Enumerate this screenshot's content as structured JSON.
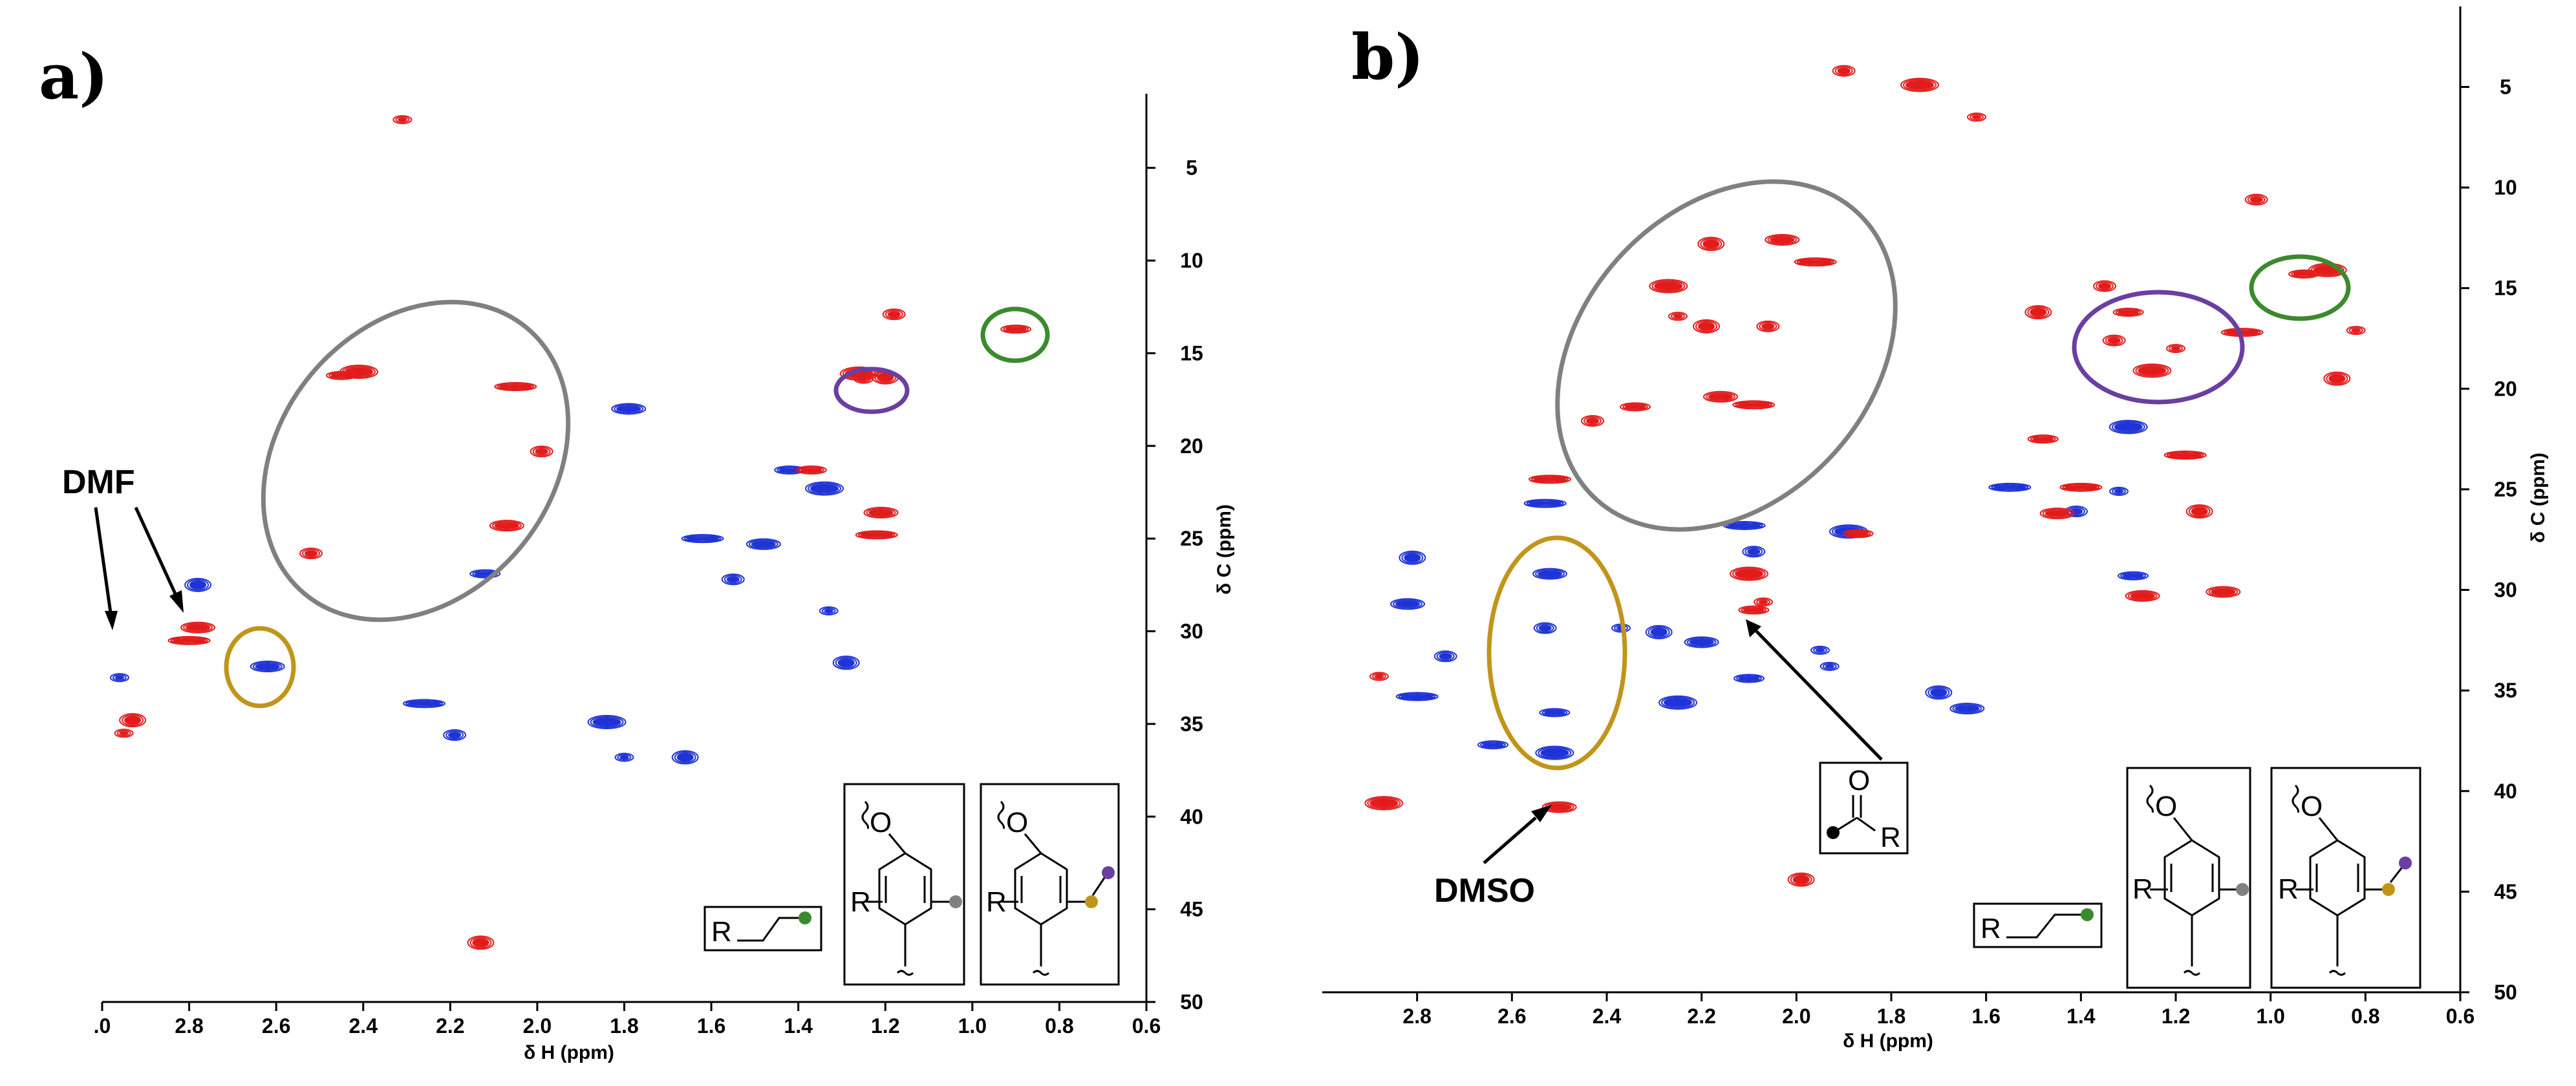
{
  "figure_colors": {
    "positive": "#e21b1b",
    "negative": "#1f33d6",
    "gray": "#808080",
    "gold": "#c0951a",
    "purple": "#6a3fa0",
    "green": "#3c8a2e"
  },
  "panels": [
    {
      "label": "a)",
      "xlabel": "δ H (ppm)",
      "ylabel": "δ C (ppm)",
      "xticks": [
        ".0",
        "2.8",
        "2.6",
        "2.4",
        "2.2",
        "2.0",
        "1.8",
        "1.6",
        "1.4",
        "1.2",
        "1.0",
        "0.8",
        "0.6"
      ],
      "yticks": [
        "5",
        "10",
        "15",
        "20",
        "25",
        "30",
        "35",
        "40",
        "45",
        "50"
      ],
      "annotation": "DMF",
      "structure_labels": [
        "R",
        "O",
        "R",
        "O",
        "R"
      ]
    },
    {
      "label": "b)",
      "xlabel": "δ H (ppm)",
      "ylabel": "δ C (ppm)",
      "xticks": [
        "2.8",
        "2.6",
        "2.4",
        "2.2",
        "2.0",
        "1.8",
        "1.6",
        "1.4",
        "1.2",
        "1.0",
        "0.8",
        "0.6"
      ],
      "yticks": [
        "5",
        "10",
        "15",
        "20",
        "25",
        "30",
        "35",
        "40",
        "45",
        "50"
      ],
      "annotation": "DMSO",
      "structure_labels": [
        "O",
        "R",
        "R",
        "O",
        "R",
        "O",
        "R"
      ]
    }
  ],
  "chart_data": [
    {
      "type": "scatter",
      "title": "a)",
      "xlabel": "δ H (ppm)",
      "ylabel": "δ C (ppm)",
      "xlim": [
        3.0,
        0.6
      ],
      "ylim": [
        50,
        1
      ],
      "series": [
        {
          "name": "positive (red)",
          "points": [
            [
              2.95,
              35.5
            ],
            [
              2.93,
              34.8
            ],
            [
              2.78,
              29.8
            ],
            [
              2.8,
              30.5
            ],
            [
              2.52,
              25.8
            ],
            [
              2.45,
              16.2
            ],
            [
              2.41,
              16.0
            ],
            [
              2.31,
              2.4
            ],
            [
              2.13,
              46.8
            ],
            [
              2.07,
              24.3
            ],
            [
              2.05,
              16.8
            ],
            [
              1.99,
              20.3
            ],
            [
              1.37,
              21.3
            ],
            [
              1.26,
              16.1
            ],
            [
              1.25,
              16.4
            ],
            [
              1.2,
              16.3
            ],
            [
              1.21,
              23.6
            ],
            [
              1.22,
              24.8
            ],
            [
              1.18,
              12.9
            ],
            [
              0.9,
              13.7
            ]
          ]
        },
        {
          "name": "negative (blue)",
          "points": [
            [
              2.96,
              32.5
            ],
            [
              2.78,
              27.5
            ],
            [
              2.62,
              31.9
            ],
            [
              2.26,
              33.9
            ],
            [
              2.19,
              35.6
            ],
            [
              2.12,
              26.9
            ],
            [
              1.84,
              34.9
            ],
            [
              1.8,
              36.8
            ],
            [
              1.66,
              36.8
            ],
            [
              1.79,
              18.0
            ],
            [
              1.62,
              25.0
            ],
            [
              1.55,
              27.2
            ],
            [
              1.42,
              21.3
            ],
            [
              1.34,
              22.3
            ],
            [
              1.33,
              28.9
            ],
            [
              1.29,
              31.7
            ],
            [
              1.48,
              25.3
            ]
          ]
        }
      ],
      "regions": [
        {
          "color": "gray",
          "x": 2.28,
          "y": 20.4
        },
        {
          "color": "gold",
          "x": 2.62,
          "y": 31.8
        },
        {
          "color": "purple",
          "x": 1.22,
          "y": 16.3
        },
        {
          "color": "green",
          "x": 0.9,
          "y": 13.7
        }
      ],
      "annotations": [
        {
          "text": "DMF",
          "targets": [
            [
              2.97,
              33.5
            ],
            [
              2.79,
              29.5
            ]
          ]
        }
      ]
    },
    {
      "type": "scatter",
      "title": "b)",
      "xlabel": "δ H (ppm)",
      "ylabel": "δ C (ppm)",
      "xlim": [
        3.0,
        0.6
      ],
      "ylim": [
        50,
        1
      ],
      "series": [
        {
          "name": "positive (red)",
          "points": [
            [
              2.5,
              40.8
            ],
            [
              2.52,
              24.5
            ],
            [
              2.43,
              21.6
            ],
            [
              2.34,
              20.9
            ],
            [
              2.27,
              14.9
            ],
            [
              2.25,
              16.4
            ],
            [
              2.19,
              16.9
            ],
            [
              2.16,
              20.4
            ],
            [
              2.09,
              20.8
            ],
            [
              2.06,
              16.9
            ],
            [
              2.09,
              31.0
            ],
            [
              2.1,
              29.2
            ],
            [
              2.07,
              30.6
            ],
            [
              2.18,
              12.8
            ],
            [
              2.03,
              12.6
            ],
            [
              1.96,
              13.7
            ],
            [
              1.9,
              4.2
            ],
            [
              1.87,
              27.2
            ],
            [
              1.74,
              4.9
            ],
            [
              1.62,
              6.5
            ],
            [
              1.49,
              16.2
            ],
            [
              1.45,
              26.2
            ],
            [
              1.4,
              24.9
            ],
            [
              1.33,
              17.6
            ],
            [
              1.3,
              16.2
            ],
            [
              1.25,
              19.1
            ],
            [
              1.2,
              18.0
            ],
            [
              1.15,
              26.1
            ],
            [
              1.1,
              30.1
            ],
            [
              1.06,
              17.2
            ],
            [
              1.03,
              10.6
            ],
            [
              0.93,
              14.3
            ],
            [
              0.88,
              14.1
            ],
            [
              0.82,
              17.1
            ],
            [
              0.86,
              19.5
            ],
            [
              1.27,
              30.3
            ],
            [
              1.18,
              23.3
            ],
            [
              1.35,
              14.9
            ],
            [
              1.48,
              22.5
            ],
            [
              2.87,
              40.6
            ],
            [
              2.88,
              34.3
            ],
            [
              1.99,
              44.4
            ]
          ]
        },
        {
          "name": "negative (blue)",
          "points": [
            [
              2.52,
              29.2
            ],
            [
              2.53,
              25.7
            ],
            [
              2.53,
              31.9
            ],
            [
              2.51,
              36.1
            ],
            [
              2.51,
              38.1
            ],
            [
              2.37,
              31.9
            ],
            [
              2.29,
              32.1
            ],
            [
              2.2,
              32.6
            ],
            [
              2.11,
              26.8
            ],
            [
              2.09,
              28.1
            ],
            [
              2.1,
              34.4
            ],
            [
              1.89,
              27.1
            ],
            [
              1.93,
              33.8
            ],
            [
              1.7,
              35.1
            ],
            [
              1.64,
              35.9
            ],
            [
              1.55,
              24.9
            ],
            [
              1.41,
              26.1
            ],
            [
              1.29,
              29.3
            ],
            [
              1.3,
              21.9
            ],
            [
              1.32,
              25.1
            ],
            [
              2.81,
              28.4
            ],
            [
              2.82,
              30.7
            ],
            [
              2.8,
              35.3
            ],
            [
              2.74,
              33.3
            ],
            [
              2.64,
              37.7
            ],
            [
              2.25,
              35.6
            ],
            [
              1.95,
              33.0
            ]
          ]
        }
      ],
      "regions": [
        {
          "color": "gray",
          "x": 2.1,
          "y": 18.0
        },
        {
          "color": "gold",
          "x": 2.53,
          "y": 32.0
        },
        {
          "color": "purple",
          "x": 1.2,
          "y": 17.6
        },
        {
          "color": "green",
          "x": 0.9,
          "y": 14.4
        }
      ],
      "annotations": [
        {
          "text": "DMSO",
          "targets": [
            [
              2.51,
              40.8
            ]
          ]
        },
        {
          "text": "",
          "targets": [
            [
              2.09,
              31.0
            ]
          ]
        }
      ]
    }
  ]
}
